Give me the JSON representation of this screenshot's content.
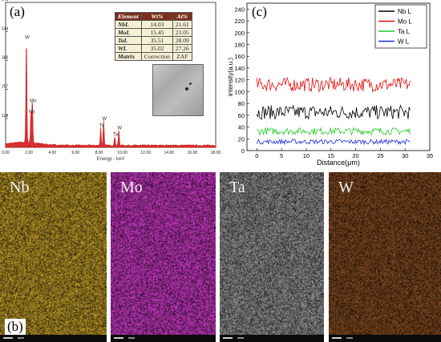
{
  "panel_labels": {
    "a": "(a)",
    "b": "(b)",
    "c": "(c)"
  },
  "composition_table": {
    "headers": [
      "Element",
      "Wt%",
      "At%"
    ],
    "rows": [
      [
        "NbL",
        "14.03",
        "21.61"
      ],
      [
        "MoL",
        "15.45",
        "23.05"
      ],
      [
        "TaL",
        "35.51",
        "28.09"
      ],
      [
        "WL",
        "35.02",
        "27.26"
      ],
      [
        "Matrix",
        "Correction",
        "ZAF"
      ]
    ]
  },
  "maps": [
    {
      "label": "Nb",
      "color": "#c8a22a"
    },
    {
      "label": "Mo",
      "color": "#d43ccf"
    },
    {
      "label": "Ta",
      "color": "#9a9a9a"
    },
    {
      "label": "W",
      "color": "#8a4f22"
    }
  ],
  "chart_data": [
    {
      "type": "line",
      "panel": "(a)",
      "xlabel": "Energy - keV",
      "xlim": [
        0,
        18
      ],
      "ylim": [
        0,
        643
      ],
      "x_ticks": [
        "0.00",
        "2.00",
        "4.00",
        "6.00",
        "8.00",
        "10.00",
        "12.00",
        "14.00",
        "16.00",
        "18.00"
      ],
      "y_ticks": [
        "128",
        "257",
        "386",
        "514",
        "643"
      ],
      "color": "#d11a1a",
      "peaks": [
        {
          "label": "W",
          "x": 1.78,
          "y": 470
        },
        {
          "label": "Mo",
          "x": 2.29,
          "y": 190
        },
        {
          "label": "Nb",
          "x": 2.17,
          "y": 140
        },
        {
          "label": "W",
          "x": 8.4,
          "y": 110
        },
        {
          "label": "Ta",
          "x": 8.15,
          "y": 80
        },
        {
          "label": "W",
          "x": 9.7,
          "y": 70
        },
        {
          "label": "Ta",
          "x": 9.35,
          "y": 40
        }
      ]
    },
    {
      "type": "line",
      "panel": "(c)",
      "xlabel": "Distance(μm)",
      "ylabel": "intensity(a.u.)",
      "xlim": [
        -2,
        35
      ],
      "ylim": [
        0,
        250
      ],
      "x_ticks": [
        0,
        5,
        10,
        15,
        20,
        25,
        30,
        35
      ],
      "y_ticks": [
        0,
        20,
        40,
        60,
        80,
        100,
        120,
        140,
        160,
        180,
        200,
        220,
        240
      ],
      "x_range": [
        0,
        31
      ],
      "series": [
        {
          "name": "Nb L",
          "color": "#000000",
          "mean": 65,
          "noise": 12
        },
        {
          "name": "Mo L",
          "color": "#e01010",
          "mean": 112,
          "noise": 12
        },
        {
          "name": "Ta L",
          "color": "#22cc22",
          "mean": 33,
          "noise": 6
        },
        {
          "name": "W  L",
          "color": "#1c2cdc",
          "mean": 15,
          "noise": 4
        }
      ]
    }
  ]
}
